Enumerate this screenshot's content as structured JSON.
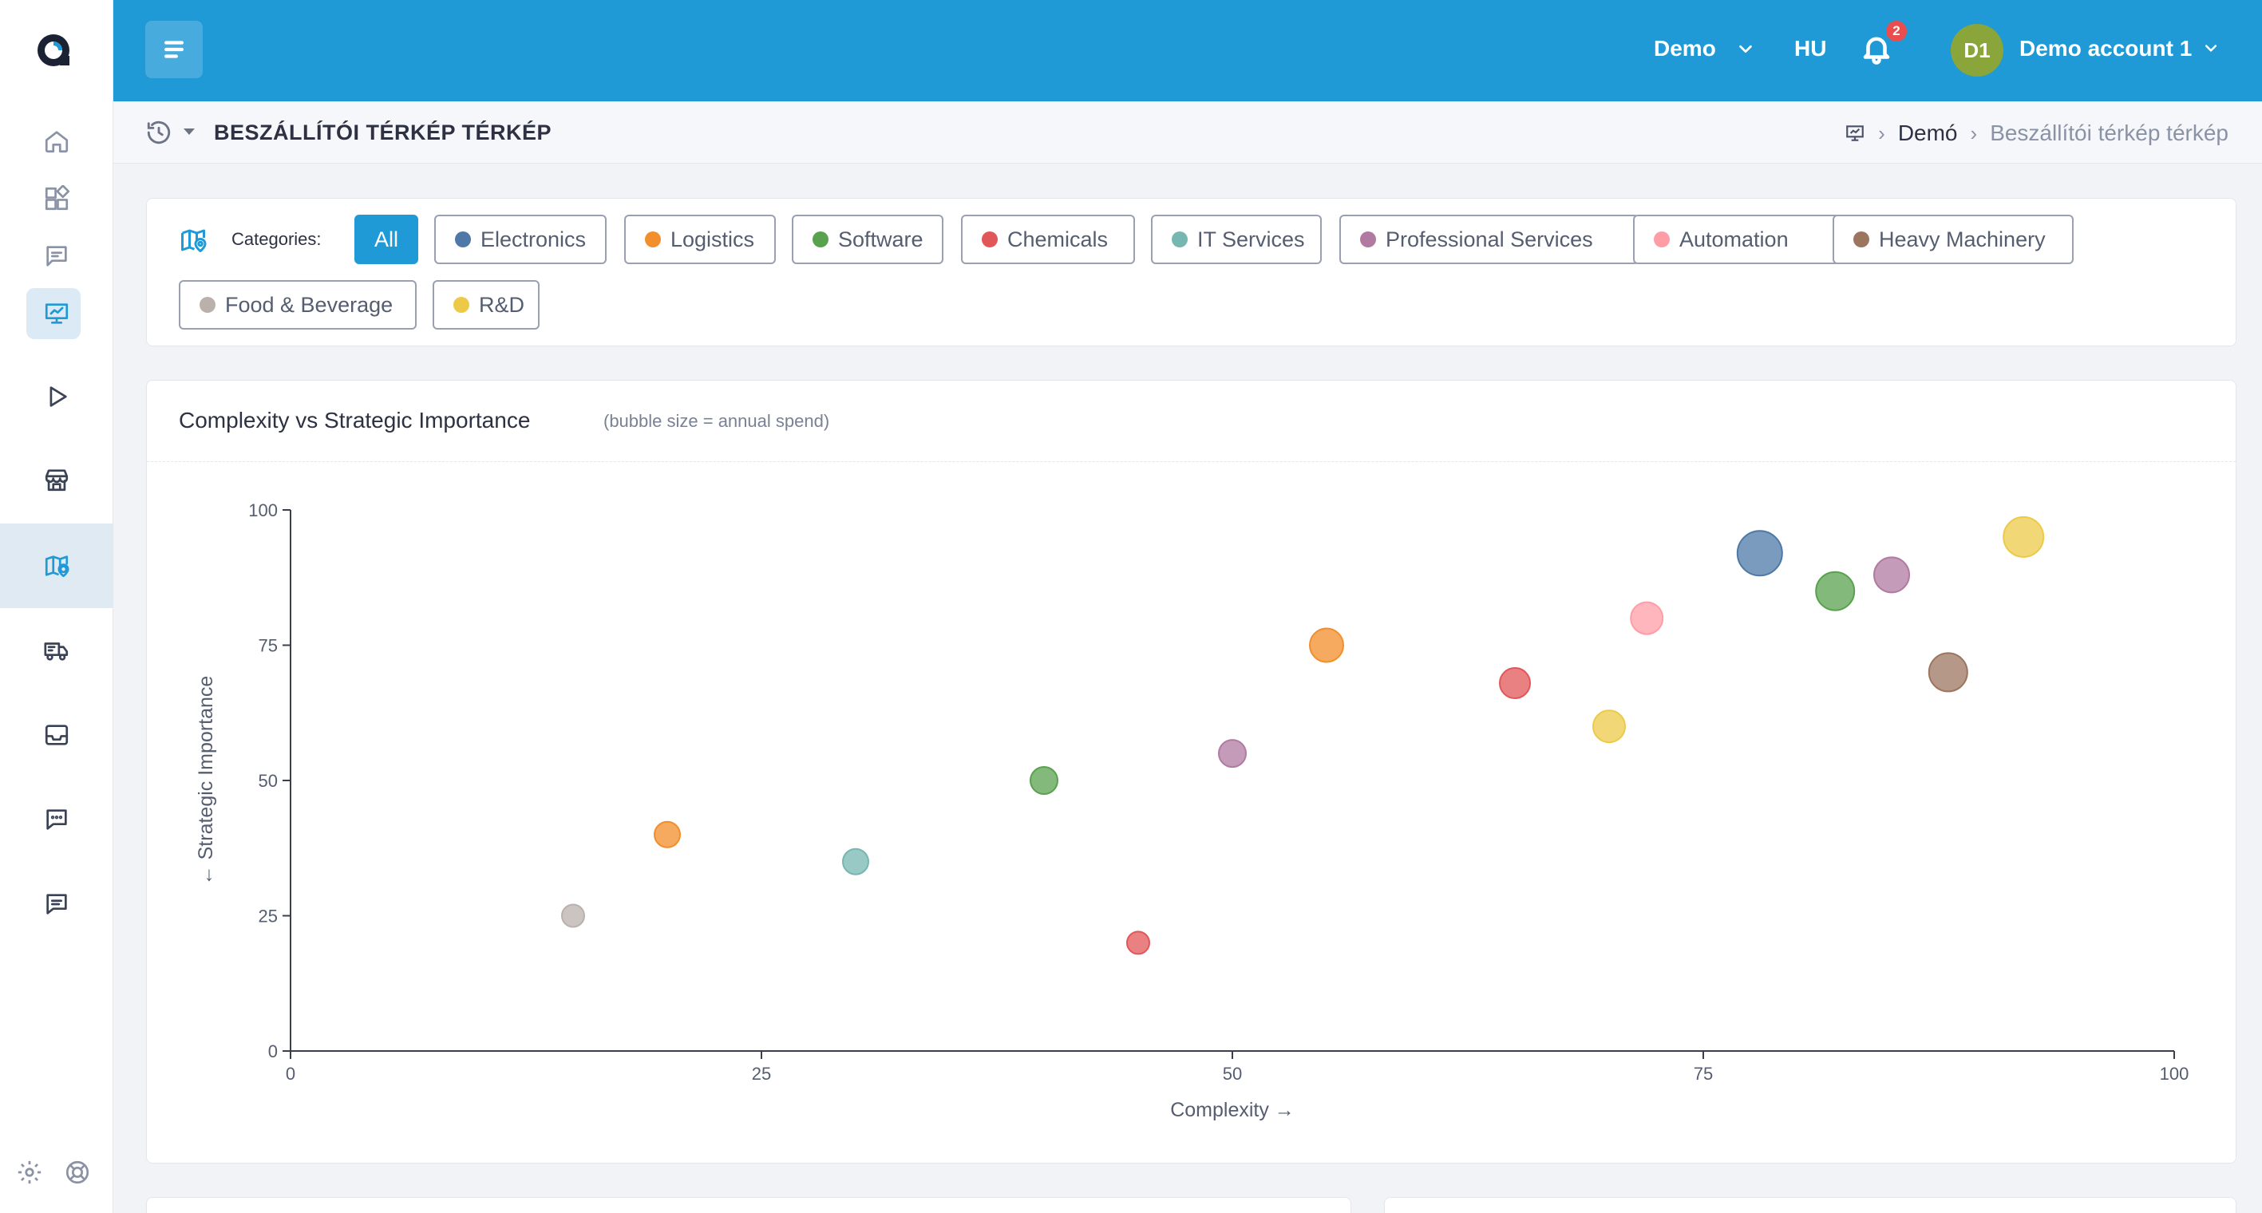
{
  "sidebar": {
    "logo": "app-logo",
    "items": [
      "home-icon",
      "apps-icon",
      "message-icon",
      "presentation-icon",
      "play-icon",
      "store-icon",
      "map-icon",
      "truck-icon",
      "inbox-icon",
      "chat-icon",
      "comment-icon"
    ],
    "footer": [
      "gear-icon",
      "help-icon"
    ]
  },
  "topbar": {
    "menu_icon": "menu-icon",
    "workspace": "Demo",
    "language": "HU",
    "notifications_count": "2",
    "avatar_initials": "D1",
    "account_name": "Demo account 1"
  },
  "subheader": {
    "title": "BESZÁLLÍTÓI TÉRKÉP TÉRKÉP",
    "breadcrumb": [
      "Demó",
      "Beszállítói térkép térkép"
    ]
  },
  "filters": {
    "label": "Categories:",
    "chips": [
      {
        "label": "All",
        "color": "",
        "active": true
      },
      {
        "label": "Electronics",
        "color": "#4e79a7",
        "active": false
      },
      {
        "label": "Logistics",
        "color": "#f28e2b",
        "active": false
      },
      {
        "label": "Software",
        "color": "#59a14f",
        "active": false
      },
      {
        "label": "Chemicals",
        "color": "#e15759",
        "active": false
      },
      {
        "label": "IT Services",
        "color": "#76b7b2",
        "active": false
      },
      {
        "label": "Professional Services",
        "color": "#b07aa1",
        "active": false
      },
      {
        "label": "Automation",
        "color": "#ff9da7",
        "active": false
      },
      {
        "label": "Heavy Machinery",
        "color": "#9c755f",
        "active": false
      },
      {
        "label": "Food & Beverage",
        "color": "#bab0ac",
        "active": false
      },
      {
        "label": "R&D",
        "color": "#edc948",
        "active": false
      }
    ]
  },
  "chart": {
    "title": "Complexity vs Strategic Importance",
    "subtitle": "(bubble size = annual spend)"
  },
  "chart_data": {
    "type": "scatter",
    "xlabel": "Complexity →",
    "ylabel": "← Strategic Importance",
    "xlim": [
      0,
      100
    ],
    "ylim": [
      0,
      100
    ],
    "xticks": [
      "0",
      "25",
      "50",
      "75",
      "100"
    ],
    "yticks": [
      "0",
      "25",
      "50",
      "75",
      "100"
    ],
    "grid": false,
    "size_encoding": "annual spend (relative)",
    "points": [
      {
        "category": "Food & Beverage",
        "x": 15,
        "y": 25,
        "size": 0.2
      },
      {
        "category": "Logistics",
        "x": 20,
        "y": 40,
        "size": 0.3
      },
      {
        "category": "IT Services",
        "x": 30,
        "y": 35,
        "size": 0.3
      },
      {
        "category": "Software",
        "x": 40,
        "y": 50,
        "size": 0.35
      },
      {
        "category": "Chemicals",
        "x": 45,
        "y": 20,
        "size": 0.2
      },
      {
        "category": "Professional Services",
        "x": 50,
        "y": 55,
        "size": 0.35
      },
      {
        "category": "Logistics",
        "x": 55,
        "y": 75,
        "size": 0.55
      },
      {
        "category": "Chemicals",
        "x": 65,
        "y": 68,
        "size": 0.45
      },
      {
        "category": "R&D",
        "x": 70,
        "y": 60,
        "size": 0.5
      },
      {
        "category": "Automation",
        "x": 72,
        "y": 80,
        "size": 0.5
      },
      {
        "category": "Electronics",
        "x": 78,
        "y": 92,
        "size": 0.9
      },
      {
        "category": "Software",
        "x": 82,
        "y": 85,
        "size": 0.7
      },
      {
        "category": "Professional Services",
        "x": 85,
        "y": 88,
        "size": 0.6
      },
      {
        "category": "Heavy Machinery",
        "x": 88,
        "y": 70,
        "size": 0.7
      },
      {
        "category": "R&D",
        "x": 92,
        "y": 95,
        "size": 0.75
      }
    ]
  }
}
